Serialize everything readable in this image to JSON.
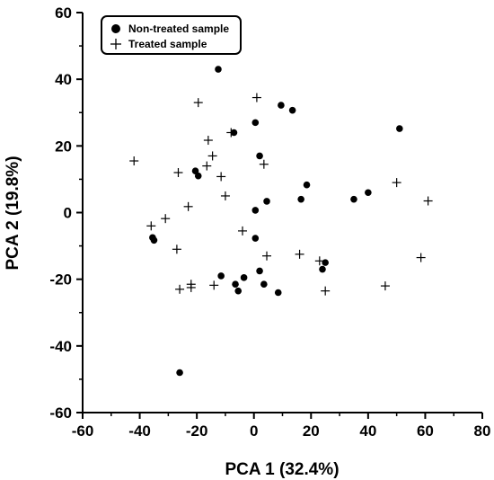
{
  "chart_data": {
    "type": "scatter",
    "xlabel": "PCA 1 (32.4%)",
    "ylabel": "PCA 2 (19.8%)",
    "xlim": [
      -60,
      80
    ],
    "ylim": [
      -60,
      60
    ],
    "xticks": [
      -60,
      -40,
      -20,
      0,
      20,
      40,
      60,
      80
    ],
    "yticks": [
      -60,
      -40,
      -20,
      0,
      20,
      40,
      60
    ],
    "legend_position": "top-left",
    "grid": false,
    "series": [
      {
        "name": "Non-treated sample",
        "marker": "filled-circle",
        "color": "#000000",
        "points": [
          [
            -12.5,
            43
          ],
          [
            9.5,
            32.2
          ],
          [
            13.5,
            30.7
          ],
          [
            0.5,
            27
          ],
          [
            51,
            25.2
          ],
          [
            -7,
            24
          ],
          [
            -20.5,
            12.5
          ],
          [
            -19.5,
            11
          ],
          [
            2,
            17
          ],
          [
            18.5,
            8.3
          ],
          [
            40,
            6
          ],
          [
            35,
            4
          ],
          [
            16.5,
            4
          ],
          [
            4.5,
            3.4
          ],
          [
            0.5,
            0.7
          ],
          [
            0.5,
            -7.7
          ],
          [
            -35.5,
            -7.5
          ],
          [
            -35,
            -8.3
          ],
          [
            25,
            -15
          ],
          [
            24,
            -17
          ],
          [
            2,
            -17.5
          ],
          [
            -11.5,
            -19
          ],
          [
            -3.5,
            -19.5
          ],
          [
            -6.5,
            -21.5
          ],
          [
            3.5,
            -21.5
          ],
          [
            -5.5,
            -23.5
          ],
          [
            8.5,
            -24
          ],
          [
            -26,
            -48
          ]
        ]
      },
      {
        "name": "Treated sample",
        "marker": "plus",
        "color": "#000000",
        "points": [
          [
            1,
            34.5
          ],
          [
            -19.5,
            33
          ],
          [
            -16,
            21.7
          ],
          [
            -8,
            24
          ],
          [
            -14.5,
            17
          ],
          [
            -42,
            15.5
          ],
          [
            -26.5,
            12
          ],
          [
            -16.5,
            14
          ],
          [
            -11.5,
            10.8
          ],
          [
            3.5,
            14.5
          ],
          [
            -10,
            5
          ],
          [
            -23,
            1.8
          ],
          [
            -31,
            -1.8
          ],
          [
            -36,
            -4
          ],
          [
            50,
            9
          ],
          [
            61,
            3.5
          ],
          [
            -4,
            -5.5
          ],
          [
            -27,
            -11
          ],
          [
            4.5,
            -13
          ],
          [
            16,
            -12.5
          ],
          [
            23,
            -14.5
          ],
          [
            58.5,
            -13.5
          ],
          [
            -22,
            -21.5
          ],
          [
            -14,
            -21.8
          ],
          [
            -26,
            -23
          ],
          [
            -22,
            -22.5
          ],
          [
            46,
            -22
          ],
          [
            25,
            -23.5
          ]
        ]
      }
    ]
  }
}
